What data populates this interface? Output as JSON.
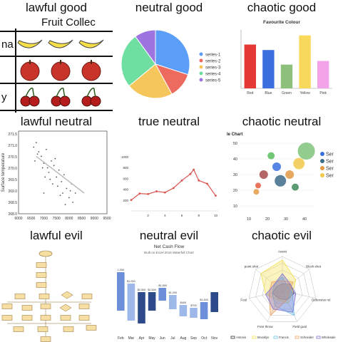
{
  "captions": [
    "lawful good",
    "neutral good",
    "chaotic good",
    "lawful neutral",
    "true neutral",
    "chaotic neutral",
    "lawful evil",
    "neutral evil",
    "chaotic evil"
  ],
  "colors": {
    "pie": [
      "#5b9ef7",
      "#ed6a5e",
      "#f4c65b",
      "#6fdfa1",
      "#9d74e0"
    ],
    "bars": [
      "#e53935",
      "#3b6fe0",
      "#8dc07a",
      "#f9d95b",
      "#f3a3e8"
    ],
    "radar": [
      "#333333",
      "#f4e04d",
      "#6cc4e8",
      "#f2a45e",
      "#7b74d4"
    ]
  },
  "pictograph": {
    "title": "Fruit Collec",
    "rows": [
      {
        "label": "na",
        "icon": "banana-icon",
        "count": 3
      },
      {
        "label": "",
        "icon": "apple-icon",
        "count": 3
      },
      {
        "label": "y",
        "icon": "cherry-icon",
        "count": 3
      }
    ]
  },
  "chart_data": [
    {
      "type": "pie",
      "values": [
        30,
        12,
        22,
        26,
        10
      ],
      "legend": [
        "series-1",
        "series-2",
        "series-3",
        "series-4",
        "series-5"
      ]
    },
    {
      "type": "bar",
      "title": "Favourite Colour",
      "categories": [
        "Red",
        "Blue",
        "Green",
        "Yellow",
        "Pink"
      ],
      "values": [
        12,
        10.5,
        6.5,
        14.5,
        7.5
      ],
      "ylim": [
        0,
        16
      ]
    },
    {
      "type": "scatter",
      "ylabel": "Surface temperature",
      "xticks": [
        "6000",
        "6500",
        "7000",
        "7500",
        "8000",
        "8500",
        "9000",
        "9500"
      ],
      "yticks": [
        "271.5",
        "271.0",
        "270.5",
        "270.0",
        "269.5",
        "269.0",
        "268.5",
        "268.0"
      ],
      "xlim": [
        6000,
        9500
      ],
      "ylim": [
        268,
        271.6
      ],
      "points": [
        [
          6600,
          270.9
        ],
        [
          6700,
          271.1
        ],
        [
          6800,
          270.7
        ],
        [
          6650,
          270.3
        ],
        [
          6900,
          270.5
        ],
        [
          7000,
          270.2
        ],
        [
          7100,
          270.8
        ],
        [
          7150,
          270.0
        ],
        [
          7200,
          269.8
        ],
        [
          7300,
          270.3
        ],
        [
          7250,
          269.5
        ],
        [
          7400,
          270.1
        ],
        [
          7500,
          269.6
        ],
        [
          7550,
          269.2
        ],
        [
          7600,
          269.9
        ],
        [
          7700,
          269.4
        ],
        [
          7750,
          268.9
        ],
        [
          7800,
          269.7
        ],
        [
          7900,
          269.1
        ],
        [
          8000,
          268.7
        ],
        [
          8100,
          269.3
        ],
        [
          8150,
          268.5
        ],
        [
          7050,
          269.6
        ],
        [
          6950,
          270.0
        ],
        [
          7350,
          269.3
        ],
        [
          7650,
          268.8
        ],
        [
          8250,
          268.9
        ],
        [
          6750,
          270.6
        ],
        [
          7450,
          270.4
        ],
        [
          7850,
          268.4
        ],
        [
          8050,
          269.0
        ],
        [
          7000,
          268.9
        ]
      ],
      "trend": [
        [
          6700,
          270.5
        ],
        [
          8600,
          268.9
        ]
      ]
    },
    {
      "type": "line",
      "xticks": [
        "2",
        "4",
        "6",
        "8",
        "10"
      ],
      "yticks": [
        "1000",
        "800",
        "600",
        "400",
        "200"
      ],
      "xlim": [
        0,
        10.3
      ],
      "ylim": [
        0,
        1050
      ],
      "points": [
        [
          0,
          200
        ],
        [
          1,
          320
        ],
        [
          2,
          310
        ],
        [
          3,
          360
        ],
        [
          4,
          340
        ],
        [
          5,
          420
        ],
        [
          6,
          560
        ],
        [
          7,
          680
        ],
        [
          7.4,
          760
        ],
        [
          8,
          560
        ],
        [
          9,
          500
        ],
        [
          10,
          280
        ]
      ]
    },
    {
      "type": "scatter",
      "title": "le Chart",
      "xticks": [
        "10",
        "20",
        "30",
        "40"
      ],
      "yticks": [
        "50",
        "40",
        "30",
        "20",
        "10"
      ],
      "xlim": [
        5,
        45
      ],
      "ylim": [
        5,
        55
      ],
      "legend": [
        "Ser",
        "Ser",
        "Ser",
        "Ser"
      ],
      "bubbles": [
        [
          15,
          23,
          4,
          "#e55c3c"
        ],
        [
          18,
          30,
          6,
          "#a84b4b"
        ],
        [
          22,
          42,
          5,
          "#58c05f"
        ],
        [
          25,
          35,
          6,
          "#3b6fe0"
        ],
        [
          27,
          26,
          8,
          "#3d6b8a"
        ],
        [
          32,
          30,
          6,
          "#e39a45"
        ],
        [
          37,
          37,
          8,
          "#f2c94c"
        ],
        [
          41,
          45,
          12,
          "#7fc47b"
        ],
        [
          14,
          19,
          4,
          "#e59a45"
        ],
        [
          35,
          22,
          5,
          "#3e8a5c"
        ]
      ]
    },
    {
      "type": "diagram",
      "description": "flowchart"
    },
    {
      "type": "bar",
      "title": "Net Cash Flow",
      "subtitle": "Built on Excel 2016 Waterfall Chart",
      "categories": [
        "Feb",
        "Mar",
        "Apr",
        "May",
        "Jun",
        "Jul",
        "Aug",
        "Sep",
        "Oct",
        "Nov"
      ],
      "labels": [
        "1,000",
        "$1,000",
        "$2,500",
        "$1,500",
        "-$1,500",
        "$1,200",
        "$400",
        "$700",
        "$1,400",
        ""
      ]
    },
    {
      "type": "area",
      "categories": [
        "Assist",
        "Block shot",
        "Defensive rel",
        "Field goal",
        "Free throw",
        "Foul",
        "point shot"
      ],
      "legend": [
        "Antonio",
        "Brooklyn",
        "Francis",
        "Schneider",
        "Wholesale"
      ],
      "series": [
        [
          0.2,
          0.3,
          0.35,
          0.3,
          0.25,
          0.3,
          0.2
        ],
        [
          0.9,
          0.5,
          0.3,
          0.4,
          0.3,
          0.5,
          0.8
        ],
        [
          0.4,
          0.2,
          0.3,
          0.8,
          0.5,
          0.3,
          0.3
        ],
        [
          0.3,
          0.4,
          0.2,
          0.3,
          0.8,
          0.4,
          0.4
        ],
        [
          0.5,
          0.3,
          0.4,
          0.7,
          0.6,
          0.5,
          0.3
        ]
      ]
    }
  ]
}
